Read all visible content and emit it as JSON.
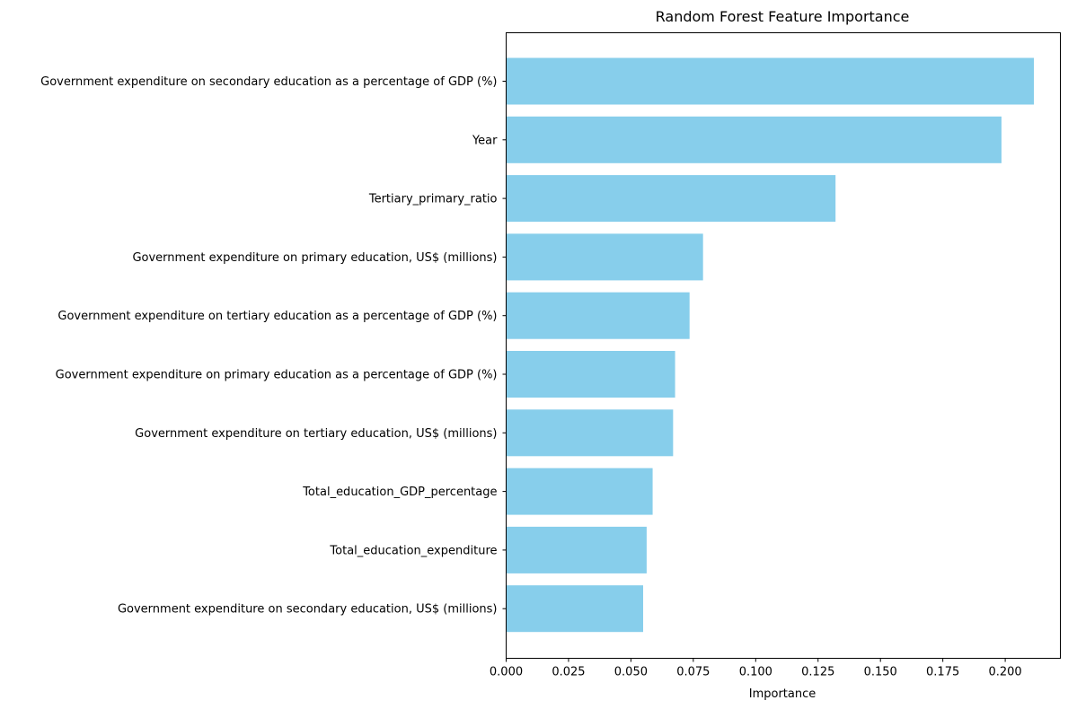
{
  "chart_data": {
    "type": "bar",
    "orientation": "horizontal",
    "title": "Random Forest Feature Importance",
    "xlabel": "Importance",
    "ylabel": "",
    "bar_color": "#87ceeb",
    "categories": [
      "Government expenditure on secondary education as a percentage of GDP (%)",
      "Year",
      "Tertiary_primary_ratio",
      "Government expenditure on primary education, US$ (millions)",
      "Government expenditure on tertiary education as a percentage of GDP (%)",
      "Government expenditure on primary education as a percentage of GDP (%)",
      "Government expenditure on tertiary education, US$ (millions)",
      "Total_education_GDP_percentage",
      "Total_education_expenditure",
      "Government expenditure on secondary education, US$ (millions)"
    ],
    "values": [
      0.2115,
      0.1985,
      0.132,
      0.0789,
      0.0735,
      0.0677,
      0.0669,
      0.0587,
      0.0563,
      0.0549
    ],
    "xlim": [
      0,
      0.2221
    ],
    "xticks": [
      "0.000",
      "0.025",
      "0.050",
      "0.075",
      "0.100",
      "0.125",
      "0.150",
      "0.175",
      "0.200"
    ],
    "grid": false,
    "legend": "none"
  }
}
